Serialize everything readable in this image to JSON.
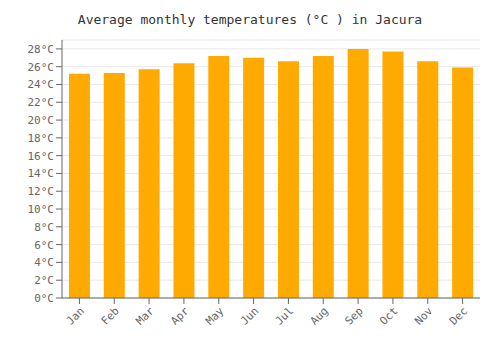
{
  "chart_data": {
    "type": "bar",
    "title": "Average monthly temperatures (°C ) in Jacura",
    "categories": [
      "Jan",
      "Feb",
      "Mar",
      "Apr",
      "May",
      "Jun",
      "Jul",
      "Aug",
      "Sep",
      "Oct",
      "Nov",
      "Dec"
    ],
    "values": [
      25.2,
      25.3,
      25.7,
      26.4,
      27.2,
      27.0,
      26.6,
      27.2,
      28.0,
      27.7,
      26.6,
      25.9
    ],
    "color": "#FFAA00",
    "ylim": [
      0,
      29
    ],
    "yticks": [
      {
        "value": 0,
        "label": "0°C"
      },
      {
        "value": 2,
        "label": "2°C"
      },
      {
        "value": 4,
        "label": "4°C"
      },
      {
        "value": 6,
        "label": "6°C"
      },
      {
        "value": 8,
        "label": "8°C"
      },
      {
        "value": 10,
        "label": "10°C"
      },
      {
        "value": 12,
        "label": "12°C"
      },
      {
        "value": 14,
        "label": "14°C"
      },
      {
        "value": 16,
        "label": "16°C"
      },
      {
        "value": 18,
        "label": "18°C"
      },
      {
        "value": 20,
        "label": "20°C"
      },
      {
        "value": 22,
        "label": "22°C"
      },
      {
        "value": 24,
        "label": "24°C"
      },
      {
        "value": 26,
        "label": "26°C"
      },
      {
        "value": 28,
        "label": "28°C"
      }
    ],
    "grid": true
  }
}
